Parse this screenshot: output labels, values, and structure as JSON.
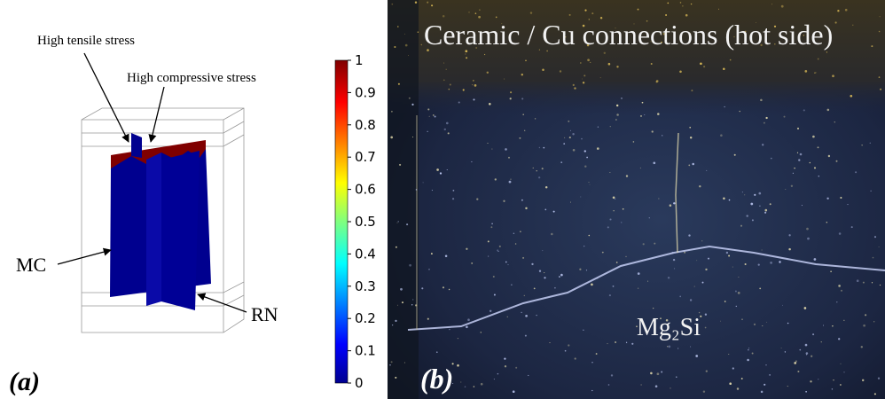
{
  "panel_a": {
    "label": "(a)",
    "annotations": {
      "tensile": "High tensile stress",
      "compressive": "High compressive stress",
      "mc": "MC",
      "rn": "RN"
    },
    "colorbar": {
      "ticks": [
        0,
        0.1,
        0.2,
        0.3,
        0.4,
        0.5,
        0.6,
        0.7,
        0.8,
        0.9,
        1
      ]
    }
  },
  "panel_b": {
    "label": "(b)",
    "caption": "Ceramic / Cu connections (hot side)",
    "material": "Mg₂Si"
  }
}
